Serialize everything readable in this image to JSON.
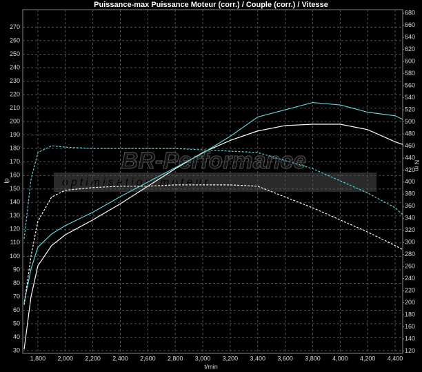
{
  "chart_data": {
    "type": "line",
    "title": "Puissance-max Puissance Moteur (corr.) / Couple (corr.) / Vitesse",
    "ylabel": "Ip",
    "y2label": "N m",
    "xlabel": "t/min",
    "annotations": [
      "BR-Performance",
      "optimisation moteur"
    ],
    "x": [
      1700,
      1750,
      1800,
      1900,
      2000,
      2200,
      2400,
      2600,
      2800,
      3000,
      3200,
      3400,
      3600,
      3800,
      4000,
      4200,
      4400,
      4455
    ],
    "series": [
      {
        "color": "#ffffff",
        "dash": false,
        "values": [
          31,
          70,
          93,
          108,
          116,
          127,
          139,
          152,
          165,
          177,
          186,
          193,
          197,
          198,
          198,
          194,
          185,
          183
        ]
      },
      {
        "color": "#5fd3d8",
        "dash": false,
        "axis": "y2",
        "values": [
          200,
          256,
          292,
          314,
          328,
          350,
          376,
          400,
          424,
          448,
          476,
          508,
          520,
          532,
          528,
          516,
          510,
          504
        ]
      },
      {
        "color": "#5fd3d8",
        "dash": true,
        "values": [
          113,
          157,
          177,
          182,
          181,
          180,
          180,
          180,
          180,
          179,
          178,
          177,
          171,
          165,
          156,
          147,
          136,
          131
        ]
      },
      {
        "color": "#ffffff",
        "dash": true,
        "values": [
          64,
          100,
          126,
          144,
          149,
          151,
          152,
          152,
          153,
          153,
          153,
          152,
          144,
          136,
          127,
          118,
          108,
          105
        ]
      }
    ],
    "xlim": [
      1690,
      4455
    ],
    "xticks": [
      {
        "value": 1800,
        "label": "1,800"
      },
      {
        "value": 2000,
        "label": "2,000"
      },
      {
        "value": 2200,
        "label": "2,200"
      },
      {
        "value": 2400,
        "label": "2,400"
      },
      {
        "value": 2600,
        "label": "2,600"
      },
      {
        "value": 2800,
        "label": "2,800"
      },
      {
        "value": 3000,
        "label": "3,000"
      },
      {
        "value": 3200,
        "label": "3,200"
      },
      {
        "value": 3400,
        "label": "3,400"
      },
      {
        "value": 3600,
        "label": "3,600"
      },
      {
        "value": 3800,
        "label": "3,800"
      },
      {
        "value": 4000,
        "label": "4,000"
      },
      {
        "value": 4200,
        "label": "4,200"
      },
      {
        "value": 4400,
        "label": "4,400"
      }
    ],
    "ylim": [
      28,
      283
    ],
    "yticks": [
      30,
      40,
      50,
      60,
      70,
      80,
      90,
      100,
      110,
      120,
      130,
      140,
      150,
      160,
      170,
      180,
      190,
      200,
      210,
      220,
      230,
      240,
      250,
      260,
      270
    ],
    "y2lim": [
      116,
      686
    ],
    "y2ticks": [
      120,
      140,
      160,
      180,
      200,
      220,
      240,
      260,
      280,
      300,
      320,
      340,
      360,
      380,
      400,
      420,
      440,
      460,
      480,
      500,
      520,
      540,
      560,
      580,
      600,
      620,
      640,
      660,
      680
    ],
    "grid": true
  }
}
